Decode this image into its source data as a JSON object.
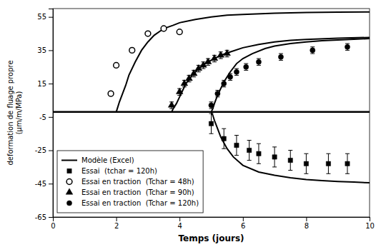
{
  "chart_data": {
    "type": "line",
    "x_label": "Temps (jours)",
    "y_label": "deformation de fluage propre\n(μm/m/MPa)",
    "xlim": [
      0,
      10
    ],
    "ylim": [
      -65,
      60
    ],
    "xticks": [
      0,
      2,
      4,
      6,
      8,
      10
    ],
    "yticks": [
      -65,
      -45,
      -25,
      -5,
      15,
      35,
      55
    ],
    "grid": false,
    "legend": "lower left",
    "series": [
      {
        "name": "Modèle (Excel)",
        "type": "line",
        "color": "black",
        "line_style": "solid",
        "x": [
          0,
          10
        ],
        "values": [
          -2,
          -2
        ]
      },
      {
        "type": "line",
        "color": "black",
        "line_style": "solid",
        "x": [
          2.0,
          2.05,
          2.1,
          2.2,
          2.3,
          2.4,
          2.6,
          2.8,
          3.0,
          3.2,
          3.5,
          3.8,
          4.0,
          4.5,
          5.0,
          5.5,
          6.0,
          7.0,
          8.0,
          9.0,
          10.0
        ],
        "values": [
          -2,
          1,
          4,
          9,
          14,
          20,
          28,
          35,
          40,
          44,
          48,
          50,
          51.5,
          53.5,
          55.0,
          56.0,
          56.5,
          57.2,
          57.6,
          57.9,
          58.0
        ]
      },
      {
        "type": "line",
        "color": "black",
        "line_style": "solid",
        "x": [
          3.75,
          3.8,
          3.9,
          4.0,
          4.1,
          4.2,
          4.4,
          4.6,
          4.8,
          5.0,
          5.3,
          5.6,
          6.0,
          6.5,
          7.0,
          7.5,
          8.0,
          9.0,
          10.0
        ],
        "values": [
          -2,
          0,
          3,
          7,
          11,
          15,
          20,
          24,
          27,
          29,
          32,
          34,
          36.5,
          38.5,
          40.0,
          41.0,
          41.5,
          42.2,
          42.7
        ]
      },
      {
        "type": "line",
        "color": "black",
        "line_style": "solid",
        "x": [
          5.0,
          5.05,
          5.1,
          5.2,
          5.3,
          5.4,
          5.5,
          5.6,
          5.8,
          6.0,
          6.3,
          6.7,
          7.0,
          7.5,
          8.0,
          8.5,
          9.0,
          9.5,
          10.0
        ],
        "values": [
          -2,
          0,
          3,
          8,
          12,
          16,
          19,
          22,
          27,
          30,
          33,
          36,
          37.5,
          39.0,
          40.0,
          40.7,
          41.2,
          41.6,
          42.0
        ]
      },
      {
        "type": "line",
        "color": "black",
        "line_style": "solid",
        "x": [
          5.0,
          5.05,
          5.1,
          5.2,
          5.3,
          5.5,
          5.7,
          6.0,
          6.5,
          7.0,
          7.5,
          8.0,
          8.5,
          9.0,
          9.5,
          10.0
        ],
        "values": [
          -2,
          -4,
          -7,
          -12,
          -17,
          -24,
          -29,
          -34,
          -38,
          -40,
          -41.5,
          -42.5,
          -43.2,
          -43.7,
          -44.0,
          -44.5
        ]
      },
      {
        "name": "Essai  (tchar = 120h)",
        "type": "scatter",
        "color": "black",
        "marker": "square",
        "x": [
          5.0,
          5.4,
          5.8,
          6.2,
          6.5,
          7.0,
          7.5,
          8.0,
          8.7,
          9.3
        ],
        "values": [
          -9,
          -18,
          -22,
          -25,
          -27,
          -29,
          -31,
          -33,
          -33,
          -33
        ],
        "errors": [
          6,
          6,
          6,
          6,
          6,
          6,
          6,
          6,
          6,
          6
        ]
      },
      {
        "name": "Essai en traction  (Tchar = 48h)",
        "type": "scatter",
        "color": "black",
        "marker": "open-circle",
        "x": [
          1.83,
          2.0,
          2.5,
          3.0,
          3.5,
          4.0
        ],
        "values": [
          9,
          26,
          35,
          45,
          48,
          46
        ]
      },
      {
        "name": "Essai en traction  (Tchar = 90h)",
        "type": "scatter",
        "color": "black",
        "marker": "triangle",
        "x": [
          3.75,
          4.0,
          4.15,
          4.3,
          4.45,
          4.6,
          4.75,
          4.9,
          5.1,
          5.3,
          5.5
        ],
        "values": [
          2,
          10,
          15,
          18,
          21,
          24,
          26,
          28,
          30,
          32,
          33
        ],
        "errors": [
          2,
          2,
          2,
          2,
          2,
          2,
          2,
          2,
          2,
          2,
          2
        ]
      },
      {
        "name": "Essai en traction  (Tchar = 120h)",
        "type": "scatter",
        "color": "black",
        "marker": "circle",
        "x": [
          5.0,
          5.2,
          5.4,
          5.6,
          5.8,
          6.1,
          6.5,
          7.2,
          8.2,
          9.3
        ],
        "values": [
          2,
          9,
          15,
          19,
          22,
          25,
          28,
          31,
          35,
          37
        ],
        "errors": [
          2,
          2,
          2,
          2,
          2,
          2,
          2,
          2,
          2,
          2
        ]
      }
    ]
  }
}
